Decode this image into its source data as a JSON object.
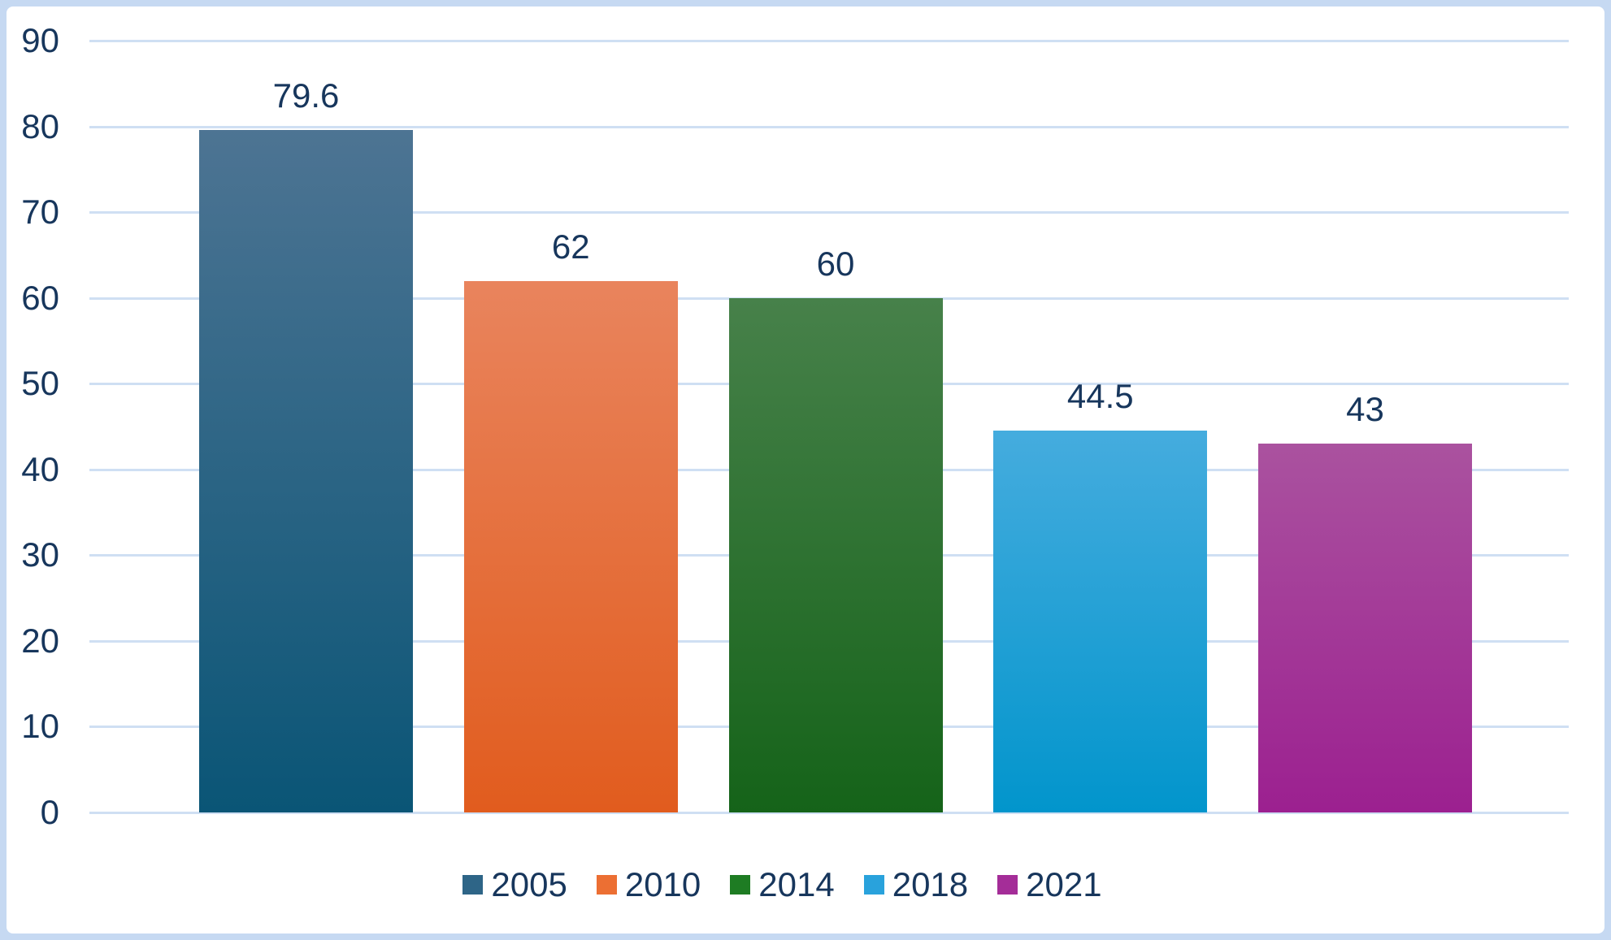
{
  "chart_data": {
    "type": "bar",
    "categories": [
      "2005",
      "2010",
      "2014",
      "2018",
      "2021"
    ],
    "values": [
      79.6,
      62,
      60,
      44.5,
      43
    ],
    "value_labels": [
      "79.6",
      "62",
      "60",
      "44.5",
      "43"
    ],
    "title": "",
    "xlabel": "",
    "ylabel": "",
    "ylim": [
      0,
      90
    ],
    "yticks": [
      0,
      10,
      20,
      30,
      40,
      50,
      60,
      70,
      80,
      90
    ],
    "ytick_labels": [
      "0",
      "10",
      "20",
      "30",
      "40",
      "50",
      "60",
      "70",
      "80",
      "90"
    ],
    "grid": true,
    "legend_position": "bottom",
    "series": [
      {
        "name": "2005",
        "value": 79.6,
        "legend_color": "#2e6587",
        "gradient_top": "#4d7493",
        "gradient_bottom": "#0a5576"
      },
      {
        "name": "2010",
        "value": 62,
        "legend_color": "#ec6f33",
        "gradient_top": "#e9845d",
        "gradient_bottom": "#e15c1e"
      },
      {
        "name": "2014",
        "value": 60,
        "legend_color": "#1e7c23",
        "gradient_top": "#47814a",
        "gradient_bottom": "#156319"
      },
      {
        "name": "2018",
        "value": 44.5,
        "legend_color": "#29a2dc",
        "gradient_top": "#45acde",
        "gradient_bottom": "#0295cc"
      },
      {
        "name": "2021",
        "value": 43,
        "legend_color": "#a42d98",
        "gradient_top": "#aa529f",
        "gradient_bottom": "#9c2090"
      }
    ]
  },
  "colors": {
    "frame_border": "#c6d9f2",
    "panel_bg": "#ffffff",
    "gridline": "#cfdff3",
    "text": "#17365c"
  }
}
